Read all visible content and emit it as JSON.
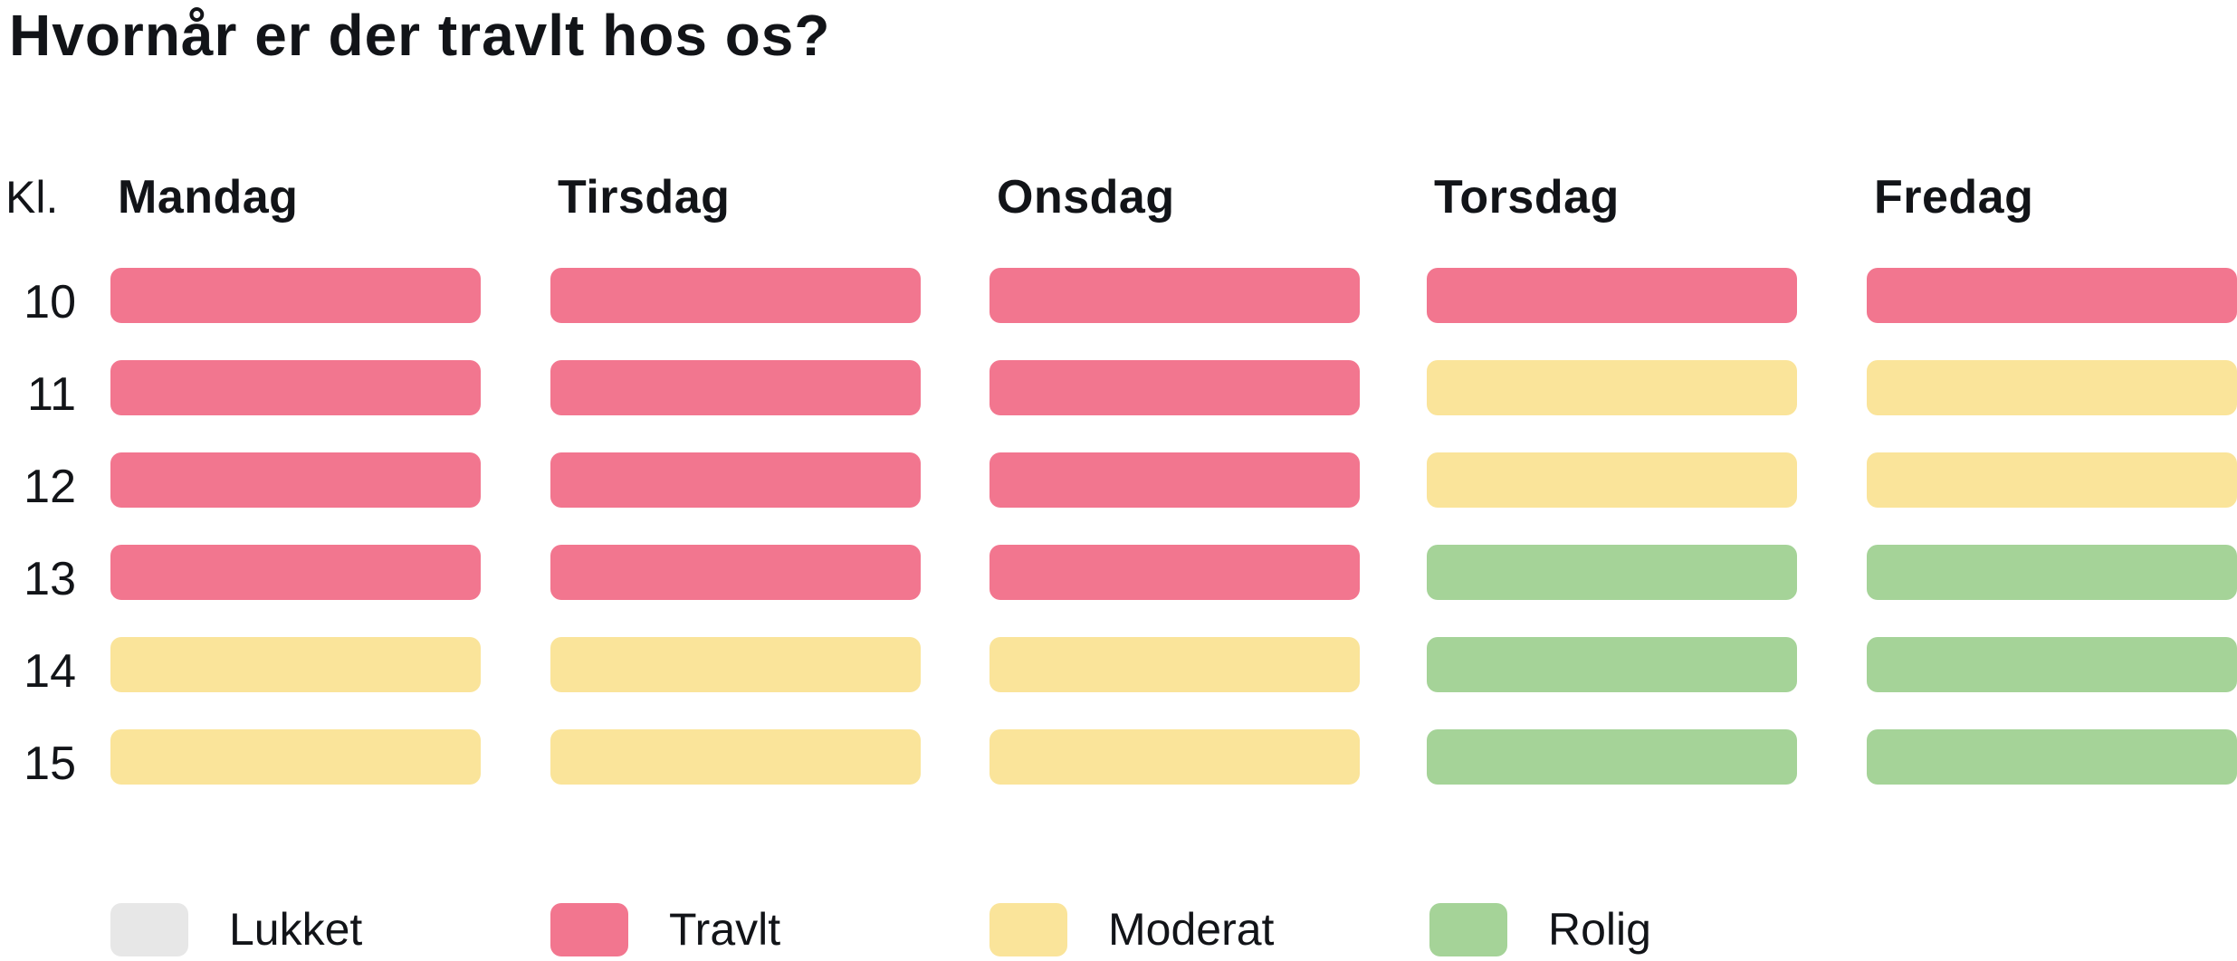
{
  "title": "Hvornår er der travlt hos os?",
  "colors": {
    "lukket": "#E7E7E7",
    "travlt": "#F2768F",
    "moderat": "#FAE49A",
    "rolig": "#A5D398",
    "text": "#121418",
    "background": "#FFFFFF"
  },
  "schedule": {
    "hour_column_header": "Kl.",
    "days": [
      "Mandag",
      "Tirsdag",
      "Onsdag",
      "Torsdag",
      "Fredag"
    ],
    "hours": [
      "10",
      "11",
      "12",
      "13",
      "14",
      "15"
    ],
    "cells": [
      [
        "travlt",
        "travlt",
        "travlt",
        "travlt",
        "travlt"
      ],
      [
        "travlt",
        "travlt",
        "travlt",
        "moderat",
        "moderat"
      ],
      [
        "travlt",
        "travlt",
        "travlt",
        "moderat",
        "moderat"
      ],
      [
        "travlt",
        "travlt",
        "travlt",
        "rolig",
        "rolig"
      ],
      [
        "moderat",
        "moderat",
        "moderat",
        "rolig",
        "rolig"
      ],
      [
        "moderat",
        "moderat",
        "moderat",
        "rolig",
        "rolig"
      ]
    ]
  },
  "legend": [
    {
      "key": "lukket",
      "label": "Lukket"
    },
    {
      "key": "travlt",
      "label": "Travlt"
    },
    {
      "key": "moderat",
      "label": "Moderat"
    },
    {
      "key": "rolig",
      "label": "Rolig"
    }
  ],
  "chart_data": {
    "type": "heatmap",
    "title": "Hvornår er der travlt hos os?",
    "xlabel": "",
    "ylabel": "Kl.",
    "x": [
      "Mandag",
      "Tirsdag",
      "Onsdag",
      "Torsdag",
      "Fredag"
    ],
    "y": [
      "10",
      "11",
      "12",
      "13",
      "14",
      "15"
    ],
    "values": [
      [
        "travlt",
        "travlt",
        "travlt",
        "travlt",
        "travlt"
      ],
      [
        "travlt",
        "travlt",
        "travlt",
        "moderat",
        "moderat"
      ],
      [
        "travlt",
        "travlt",
        "travlt",
        "moderat",
        "moderat"
      ],
      [
        "travlt",
        "travlt",
        "travlt",
        "rolig",
        "rolig"
      ],
      [
        "moderat",
        "moderat",
        "moderat",
        "rolig",
        "rolig"
      ],
      [
        "moderat",
        "moderat",
        "moderat",
        "rolig",
        "rolig"
      ]
    ],
    "legend_entries": [
      "Lukket",
      "Travlt",
      "Moderat",
      "Rolig"
    ],
    "legend_position": "bottom",
    "grid": false
  }
}
